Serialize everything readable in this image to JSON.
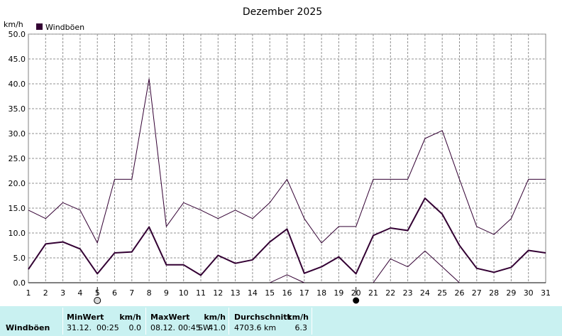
{
  "chart_data": {
    "type": "line",
    "title": "Dezember 2025",
    "ylabel": "km/h",
    "xlabel": "",
    "ylim": [
      0,
      50
    ],
    "yticks": [
      "0.0",
      "5.0",
      "10.0",
      "15.0",
      "20.0",
      "25.0",
      "30.0",
      "35.0",
      "40.0",
      "45.0",
      "50.0"
    ],
    "x": [
      1,
      2,
      3,
      4,
      5,
      6,
      7,
      8,
      9,
      10,
      11,
      12,
      13,
      14,
      15,
      16,
      17,
      18,
      19,
      20,
      21,
      22,
      23,
      24,
      25,
      26,
      27,
      28,
      29,
      30,
      31
    ],
    "grid": true,
    "legend": {
      "position": "top-left",
      "label": "Windböen",
      "color": "#330033"
    },
    "series": [
      {
        "name": "Windböen",
        "role": "avg",
        "color": "#330033",
        "values": [
          2.7,
          7.8,
          8.2,
          6.8,
          1.8,
          6.0,
          6.2,
          11.2,
          3.6,
          3.6,
          1.5,
          5.5,
          3.9,
          4.6,
          8.2,
          10.8,
          1.9,
          3.2,
          5.2,
          1.8,
          9.5,
          11.0,
          10.5,
          17.0,
          13.8,
          7.5,
          2.9,
          2.1,
          3.1,
          6.5,
          6.0
        ]
      },
      {
        "role": "max",
        "color": "#330033",
        "values": [
          14.6,
          12.9,
          16.1,
          14.6,
          8.0,
          20.8,
          20.8,
          41.0,
          11.3,
          16.1,
          14.6,
          12.9,
          14.6,
          12.9,
          16.1,
          20.8,
          12.9,
          8.0,
          11.3,
          11.3,
          20.8,
          20.8,
          20.8,
          29.0,
          30.6,
          20.8,
          11.3,
          9.7,
          12.9,
          20.8,
          20.8
        ]
      },
      {
        "role": "min",
        "color": "#330033",
        "values": [
          null,
          null,
          null,
          null,
          null,
          null,
          null,
          null,
          null,
          null,
          null,
          null,
          null,
          null,
          0.0,
          1.6,
          0.0,
          null,
          null,
          null,
          0.0,
          4.8,
          3.2,
          6.4,
          3.2,
          0.0,
          null,
          null,
          null,
          null,
          null
        ]
      }
    ],
    "moon_phases": [
      {
        "day": 5,
        "phase": "full"
      },
      {
        "day": 20,
        "phase": "new"
      }
    ]
  },
  "stats": {
    "row_label": "Windböen",
    "min": {
      "header": "MinWert",
      "unit": "km/h",
      "date": "31.12.",
      "time": "00:25",
      "value": "0.0"
    },
    "max": {
      "header": "MaxWert",
      "unit": "km/h",
      "date": "08.12.",
      "time": "00:45",
      "dir": "SW",
      "value": "41.0"
    },
    "avg": {
      "header": "Durchschnitt",
      "unit": "km/h",
      "distance": "4703.6 km",
      "value": "6.3"
    }
  }
}
